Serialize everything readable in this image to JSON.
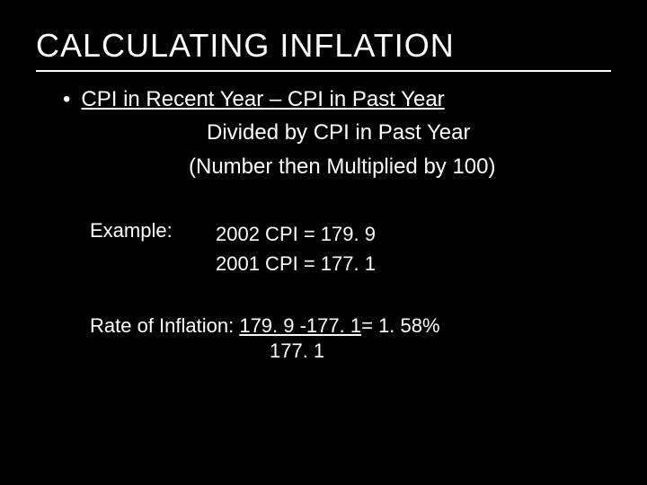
{
  "colors": {
    "background": "#000000",
    "text": "#ffffff",
    "underline": "#ffffff"
  },
  "title": "CALCULATING INFLATION",
  "bullet": {
    "line1": "CPI in Recent Year – CPI in Past Year",
    "line2": "Divided by CPI in Past Year",
    "line3": "(Number then Multiplied by 100)"
  },
  "example": {
    "label": "Example:",
    "row1": "2002 CPI = 179. 9",
    "row2": "2001 CPI = 177. 1"
  },
  "rate": {
    "label": "Rate of Inflation: ",
    "numerator": "179. 9 -177. 1",
    "equals_result": " =  1. 58%",
    "denominator": "177. 1"
  }
}
